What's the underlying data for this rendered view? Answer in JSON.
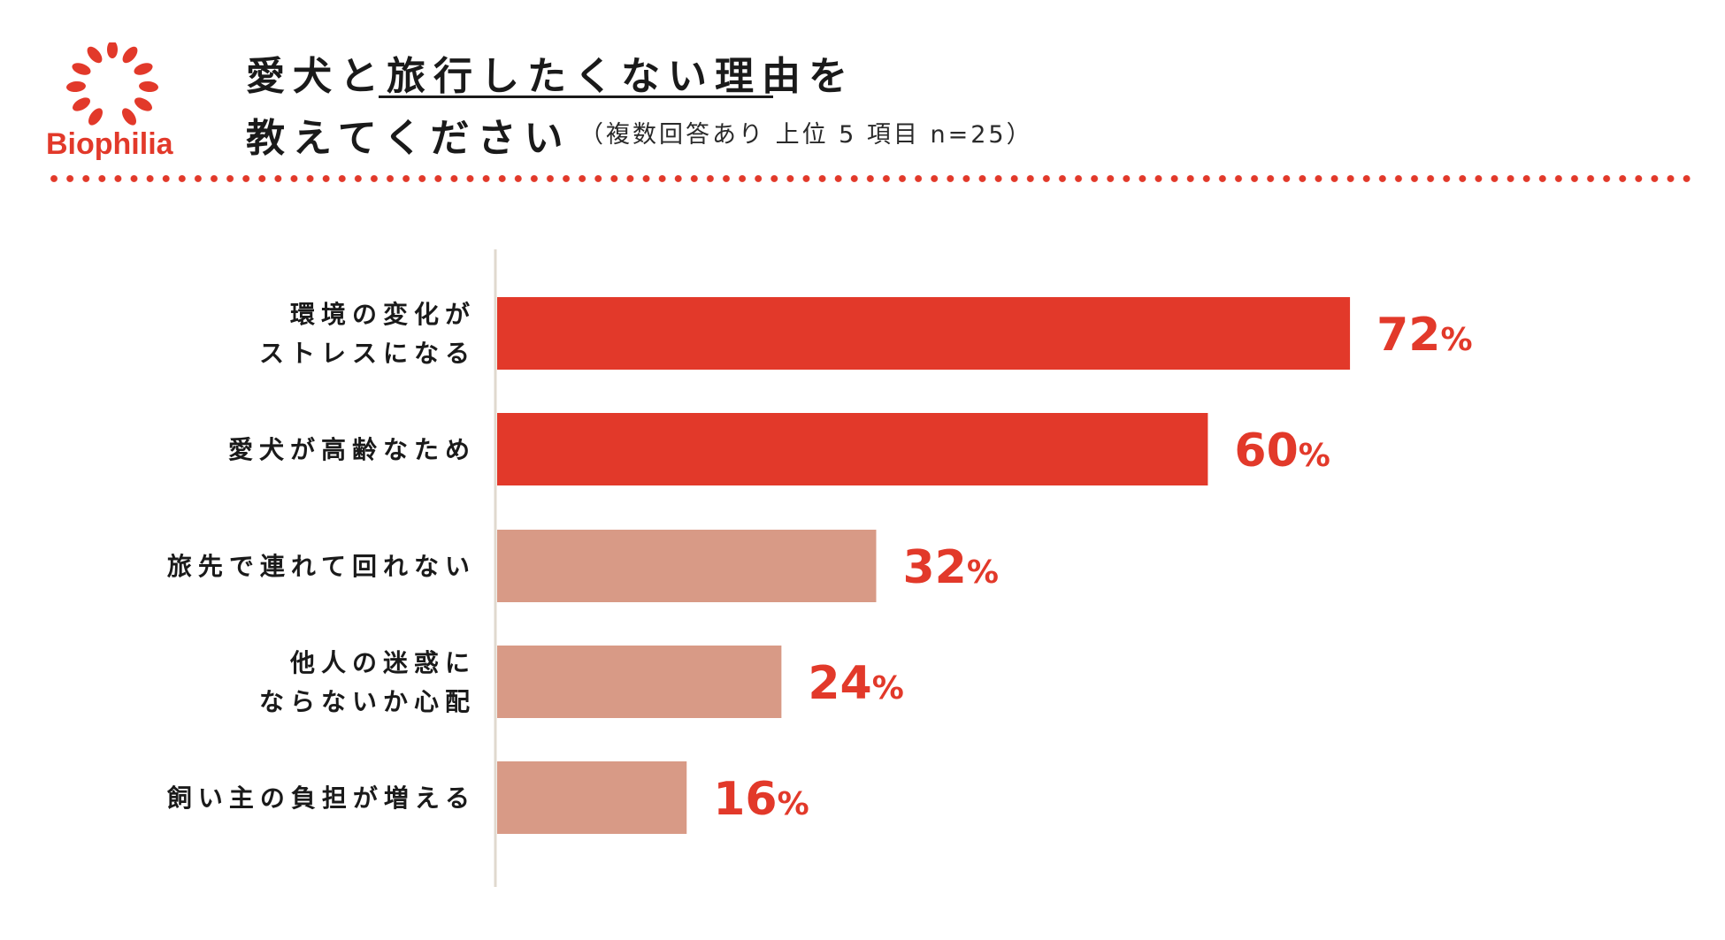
{
  "brand": {
    "name": "Biophilia",
    "color": "#e2392a",
    "icon": "laurel-wreath-icon"
  },
  "header": {
    "title_line1_prefix": "愛犬と",
    "title_line1_main": "旅行したくない理由",
    "title_line1_suffix": "を",
    "title_line2": "教えてください",
    "subtitle": "（複数回答あり 上位 5 項目 n=25）"
  },
  "chart_data": {
    "type": "bar",
    "orientation": "horizontal",
    "categories": [
      [
        "環境の変化が",
        "ストレスになる"
      ],
      [
        "愛犬が高齢なため"
      ],
      [
        "旅先で連れて回れない"
      ],
      [
        "他人の迷惑に",
        "ならないか心配"
      ],
      [
        "飼い主の負担が増える"
      ]
    ],
    "values": [
      72,
      60,
      32,
      24,
      16
    ],
    "value_suffix": "%",
    "bar_colors": [
      "#e2392a",
      "#e2392a",
      "#d89a86",
      "#d89a86",
      "#d89a86"
    ],
    "label_color": "#e2392a",
    "axis_color": "#e0d9cf",
    "xlim": [
      0,
      100
    ],
    "grid": false,
    "legend": "none"
  }
}
